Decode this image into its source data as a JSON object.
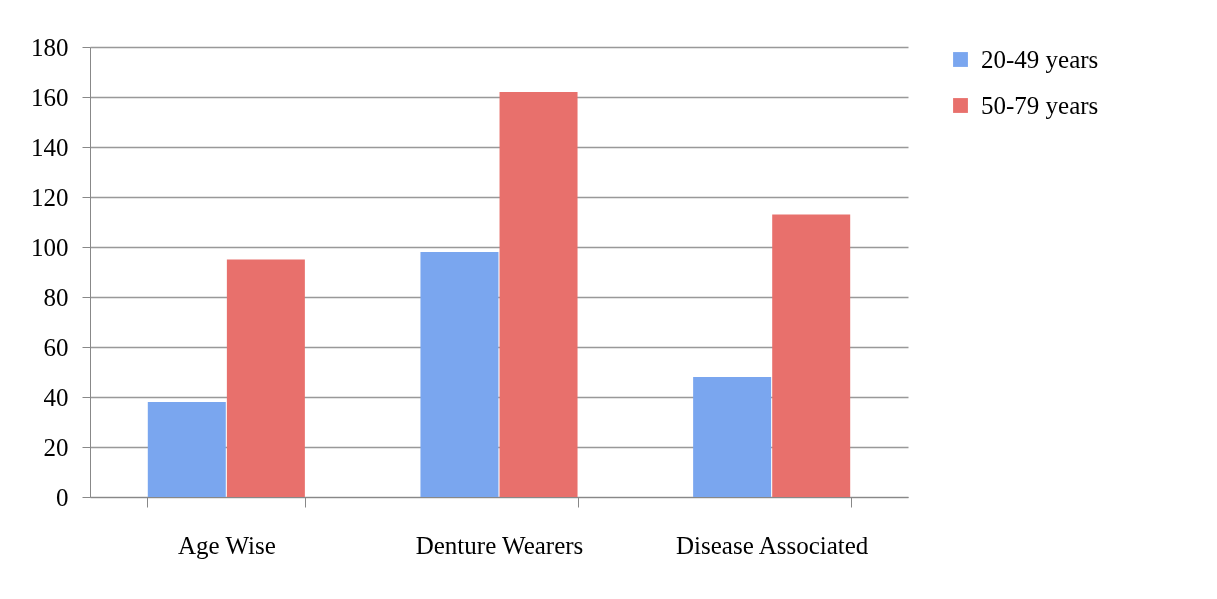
{
  "chart_data": {
    "type": "bar",
    "categories": [
      "Age Wise",
      "Denture Wearers",
      "Disease  Associated"
    ],
    "series": [
      {
        "name": "20-49 years",
        "color": "#7aa6ef",
        "values": [
          38,
          98,
          48
        ]
      },
      {
        "name": "50-79 years",
        "color": "#e8706c",
        "values": [
          95,
          162,
          113
        ]
      }
    ],
    "ylim": [
      0,
      180
    ],
    "yticks": [
      0,
      20,
      40,
      60,
      80,
      100,
      120,
      140,
      160,
      180
    ],
    "grid": "y",
    "legend": "right"
  }
}
